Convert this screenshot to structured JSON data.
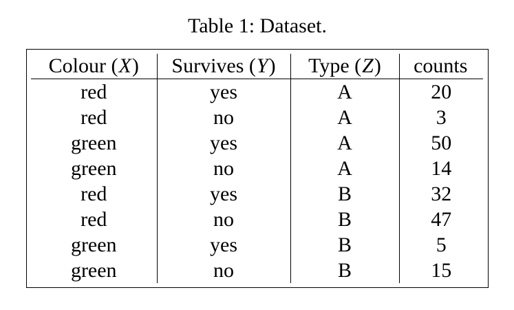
{
  "caption": "Table 1: Dataset.",
  "table": {
    "headers": [
      {
        "prefix": "Colour (",
        "symbol": "X",
        "suffix": ")"
      },
      {
        "prefix": "Survives (",
        "symbol": "Y",
        "suffix": ")"
      },
      {
        "prefix": "Type (",
        "symbol": "Z",
        "suffix": ")"
      },
      {
        "prefix": "counts",
        "symbol": "",
        "suffix": ""
      }
    ],
    "rows": [
      {
        "colour": "red",
        "survives": "yes",
        "type": "A",
        "counts": "20"
      },
      {
        "colour": "red",
        "survives": "no",
        "type": "A",
        "counts": "3"
      },
      {
        "colour": "green",
        "survives": "yes",
        "type": "A",
        "counts": "50"
      },
      {
        "colour": "green",
        "survives": "no",
        "type": "A",
        "counts": "14"
      },
      {
        "colour": "red",
        "survives": "yes",
        "type": "B",
        "counts": "32"
      },
      {
        "colour": "red",
        "survives": "no",
        "type": "B",
        "counts": "47"
      },
      {
        "colour": "green",
        "survives": "yes",
        "type": "B",
        "counts": "5"
      },
      {
        "colour": "green",
        "survives": "no",
        "type": "B",
        "counts": "15"
      }
    ]
  },
  "colors": {
    "text": "#000000",
    "background": "#ffffff",
    "rule": "#000000"
  }
}
